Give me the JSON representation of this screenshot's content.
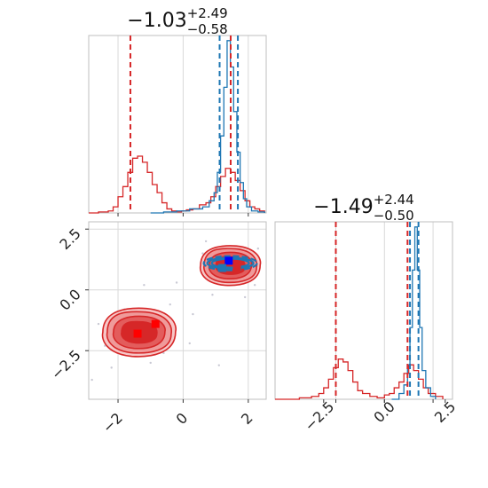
{
  "chart_data": [
    {
      "type": "histogram",
      "panel": "marginal-x",
      "title": {
        "main": "−1.03",
        "sup": "+2.49",
        "sub": "−0.58"
      },
      "xlim": [
        -2.9,
        2.55
      ],
      "grid": true,
      "series": [
        {
          "color": "#d62728",
          "bins": [
            [
              -2.9,
              0
            ],
            [
              -2.6,
              0.5
            ],
            [
              -2.3,
              1
            ],
            [
              -2.15,
              3
            ],
            [
              -2.0,
              8
            ],
            [
              -1.85,
              13
            ],
            [
              -1.7,
              20
            ],
            [
              -1.55,
              27
            ],
            [
              -1.4,
              28
            ],
            [
              -1.25,
              25
            ],
            [
              -1.1,
              20
            ],
            [
              -0.95,
              14
            ],
            [
              -0.8,
              10
            ],
            [
              -0.65,
              5
            ],
            [
              -0.5,
              2
            ],
            [
              -0.35,
              1
            ],
            [
              -0.2,
              0.5
            ],
            [
              -0.05,
              1
            ],
            [
              0.1,
              1.5
            ],
            [
              0.3,
              2
            ],
            [
              0.5,
              4
            ],
            [
              0.7,
              5
            ],
            [
              0.85,
              8
            ],
            [
              1.0,
              13
            ],
            [
              1.15,
              18
            ],
            [
              1.3,
              22
            ],
            [
              1.45,
              20
            ],
            [
              1.6,
              16
            ],
            [
              1.75,
              11
            ],
            [
              1.9,
              6
            ],
            [
              2.05,
              3
            ],
            [
              2.2,
              2
            ],
            [
              2.35,
              1
            ],
            [
              2.5,
              0
            ]
          ]
        },
        {
          "color": "#1f77b4",
          "bins": [
            [
              -1.0,
              0
            ],
            [
              -0.6,
              0.5
            ],
            [
              -0.2,
              1
            ],
            [
              0.2,
              2
            ],
            [
              0.6,
              3
            ],
            [
              0.8,
              6
            ],
            [
              0.95,
              10
            ],
            [
              1.05,
              20
            ],
            [
              1.15,
              38
            ],
            [
              1.25,
              62
            ],
            [
              1.35,
              85
            ],
            [
              1.45,
              72
            ],
            [
              1.55,
              50
            ],
            [
              1.65,
              30
            ],
            [
              1.75,
              15
            ],
            [
              1.85,
              7
            ],
            [
              1.95,
              3
            ],
            [
              2.1,
              1
            ],
            [
              2.3,
              0.5
            ],
            [
              2.5,
              0
            ]
          ]
        }
      ],
      "quantile_lines": [
        {
          "color": "#d62728",
          "x": [
            -1.62,
            1.46
          ]
        },
        {
          "color": "#1f77b4",
          "x": [
            1.12,
            1.68
          ]
        }
      ]
    },
    {
      "type": "contour",
      "panel": "joint",
      "xlim": [
        -2.9,
        2.55
      ],
      "ylim": [
        -4.5,
        2.8
      ],
      "xticks": [
        "−2",
        "0",
        "2"
      ],
      "yticks": [
        "2.5",
        "0.0",
        "−2.5"
      ],
      "grid": true,
      "series": [
        {
          "color": "#d62728",
          "centers": [
            [
              -1.35,
              -1.75
            ],
            [
              1.45,
              1.0
            ]
          ]
        },
        {
          "color": "#1f77b4",
          "centers": [
            [
              1.45,
              1.1
            ]
          ]
        }
      ],
      "markers": [
        {
          "color": "#ff0000",
          "x": -1.4,
          "y": -1.8
        },
        {
          "color": "#ff0000",
          "x": -0.85,
          "y": -1.4
        },
        {
          "color": "#0000ff",
          "x": 1.4,
          "y": 1.2
        },
        {
          "color": "#1f77b4",
          "x": 1.2,
          "y": 0.9
        },
        {
          "color": "#d62728",
          "x": 1.65,
          "y": 0.9
        }
      ]
    },
    {
      "type": "histogram",
      "panel": "marginal-y",
      "title": {
        "main": "−1.49",
        "sup": "+2.44",
        "sub": "−0.50"
      },
      "xlim": [
        -4.5,
        2.8
      ],
      "xticks": [
        "−2.5",
        "0.0",
        "2.5"
      ],
      "grid": true,
      "series": [
        {
          "color": "#d62728",
          "bins": [
            [
              -4.5,
              0
            ],
            [
              -3.5,
              0.5
            ],
            [
              -3.0,
              1
            ],
            [
              -2.7,
              2
            ],
            [
              -2.5,
              4
            ],
            [
              -2.3,
              7
            ],
            [
              -2.1,
              11
            ],
            [
              -1.9,
              14
            ],
            [
              -1.7,
              13
            ],
            [
              -1.5,
              10
            ],
            [
              -1.3,
              6
            ],
            [
              -1.1,
              3
            ],
            [
              -0.9,
              2
            ],
            [
              -0.6,
              1
            ],
            [
              -0.3,
              0.5
            ],
            [
              0.0,
              1.5
            ],
            [
              0.2,
              2
            ],
            [
              0.4,
              4
            ],
            [
              0.6,
              6
            ],
            [
              0.8,
              9
            ],
            [
              1.0,
              12
            ],
            [
              1.2,
              10
            ],
            [
              1.4,
              7
            ],
            [
              1.6,
              4
            ],
            [
              1.8,
              2
            ],
            [
              2.1,
              1
            ],
            [
              2.4,
              0
            ]
          ]
        },
        {
          "color": "#1f77b4",
          "bins": [
            [
              0.3,
              0
            ],
            [
              0.6,
              2
            ],
            [
              0.8,
              5
            ],
            [
              0.95,
              12
            ],
            [
              1.05,
              25
            ],
            [
              1.15,
              45
            ],
            [
              1.25,
              60
            ],
            [
              1.35,
              45
            ],
            [
              1.45,
              25
            ],
            [
              1.55,
              10
            ],
            [
              1.7,
              4
            ],
            [
              1.9,
              1
            ],
            [
              2.1,
              0
            ]
          ]
        }
      ],
      "quantile_lines": [
        {
          "color": "#d62728",
          "x": [
            -2.0,
            0.95
          ]
        },
        {
          "color": "#1f77b4",
          "x": [
            1.05,
            1.4
          ]
        }
      ]
    }
  ]
}
